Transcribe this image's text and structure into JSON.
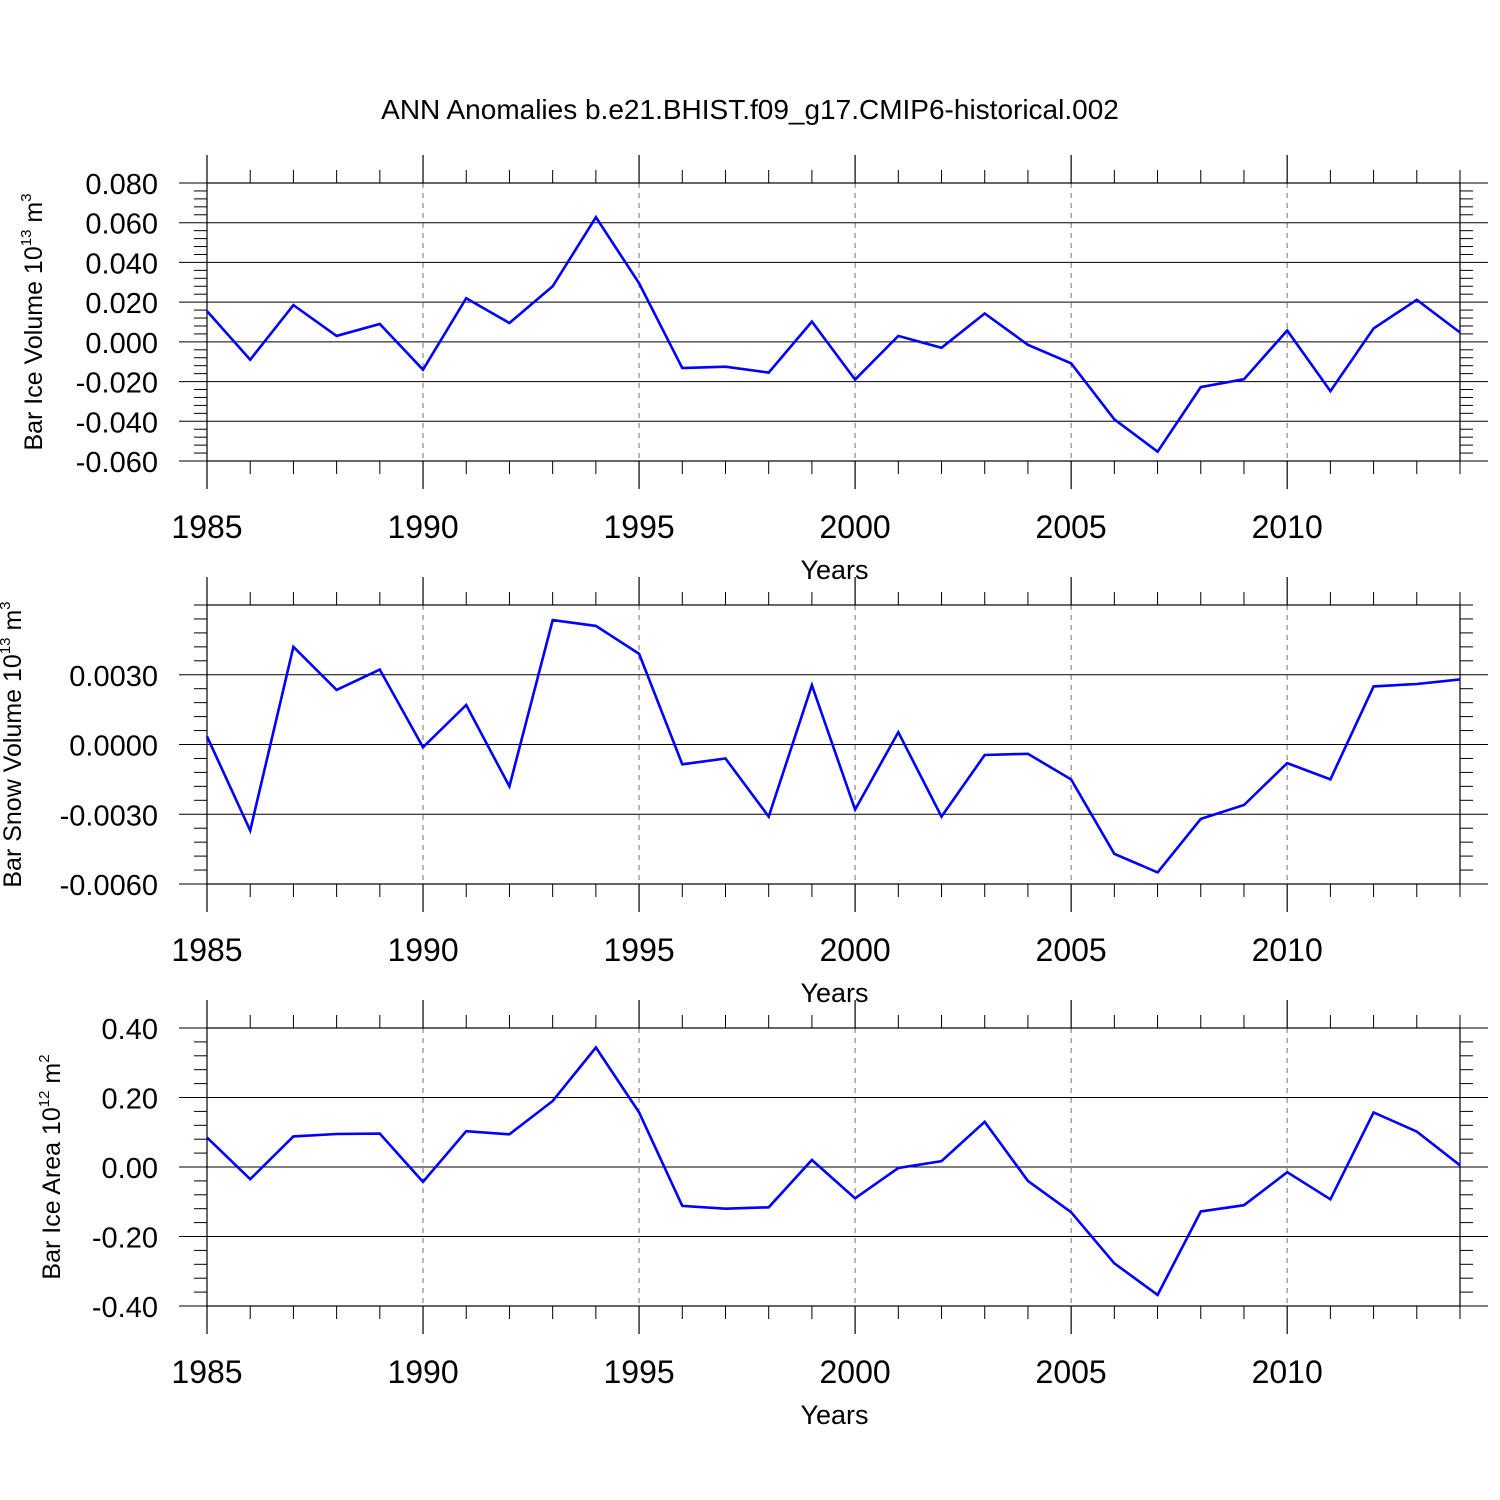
{
  "title": "ANN Anomalies b.e21.BHIST.f09_g17.CMIP6-historical.002",
  "line_color": "#0000ff",
  "chart_data": [
    {
      "type": "line",
      "ylabel": {
        "prefix": "Bar Ice Volume 10",
        "exp": "13",
        "unit": " m",
        "unit_exp": "3"
      },
      "xlabel": "Years",
      "xlim": [
        1985,
        2014
      ],
      "ylim": [
        -0.06,
        0.08
      ],
      "yticks": [
        -0.06,
        -0.04,
        -0.02,
        0.0,
        0.02,
        0.04,
        0.06,
        0.08
      ],
      "ytick_labels": [
        "-0.060",
        "-0.040",
        "-0.020",
        "0.000",
        "0.020",
        "0.040",
        "0.060",
        "0.080"
      ],
      "xticks": [
        1985,
        1990,
        1995,
        2000,
        2005,
        2010
      ],
      "xtick_labels": [
        "1985",
        "1990",
        "1995",
        "2000",
        "2005",
        "2010"
      ],
      "grid": "dashed vertical lines at major x ticks",
      "x": [
        1985,
        1986,
        1987,
        1988,
        1989,
        1990,
        1991,
        1992,
        1993,
        1994,
        1995,
        1996,
        1997,
        1998,
        1999,
        2000,
        2001,
        2002,
        2003,
        2004,
        2005,
        2006,
        2007,
        2008,
        2009,
        2010,
        2011,
        2012,
        2013,
        2014
      ],
      "values": [
        0.0155,
        -0.009,
        0.0185,
        0.003,
        0.009,
        -0.014,
        0.022,
        0.0095,
        0.028,
        0.0628,
        0.0295,
        -0.0132,
        -0.0125,
        -0.0155,
        0.0102,
        -0.019,
        0.003,
        -0.003,
        0.0143,
        -0.0015,
        -0.0108,
        -0.039,
        -0.0553,
        -0.0228,
        -0.0188,
        0.0057,
        -0.0248,
        0.0068,
        0.0212,
        0.0047
      ]
    },
    {
      "type": "line",
      "ylabel": {
        "prefix": "Bar Snow Volume 10",
        "exp": "13",
        "unit": " m",
        "unit_exp": "3"
      },
      "xlabel": "Years",
      "xlim": [
        1985,
        2014
      ],
      "ylim": [
        -0.006,
        0.006
      ],
      "yticks": [
        -0.006,
        -0.003,
        0.0,
        0.003
      ],
      "ytick_labels": [
        "-0.0060",
        "-0.0030",
        "0.0000",
        "0.0030"
      ],
      "xticks": [
        1985,
        1990,
        1995,
        2000,
        2005,
        2010
      ],
      "xtick_labels": [
        "1985",
        "1990",
        "1995",
        "2000",
        "2005",
        "2010"
      ],
      "grid": "dashed vertical lines at major x ticks",
      "x": [
        1985,
        1986,
        1987,
        1988,
        1989,
        1990,
        1991,
        1992,
        1993,
        1994,
        1995,
        1996,
        1997,
        1998,
        1999,
        2000,
        2001,
        2002,
        2003,
        2004,
        2005,
        2006,
        2007,
        2008,
        2009,
        2010,
        2011,
        2012,
        2013,
        2014
      ],
      "values": [
        0.00035,
        -0.0037,
        0.0042,
        0.00235,
        0.00322,
        -0.00012,
        0.0017,
        -0.0018,
        0.00535,
        0.0051,
        0.0039,
        -0.00085,
        -0.0006,
        -0.0031,
        0.00255,
        -0.0028,
        0.00053,
        -0.0031,
        -0.00045,
        -0.0004,
        -0.0015,
        -0.0047,
        -0.0055,
        -0.0032,
        -0.0026,
        -0.0008,
        -0.0015,
        0.0025,
        0.0026,
        0.0028
      ]
    },
    {
      "type": "line",
      "ylabel": {
        "prefix": "Bar Ice Area 10",
        "exp": "12",
        "unit": " m",
        "unit_exp": "2"
      },
      "xlabel": "Years",
      "xlim": [
        1985,
        2014
      ],
      "ylim": [
        -0.4,
        0.4
      ],
      "yticks": [
        -0.4,
        -0.2,
        0.0,
        0.2,
        0.4
      ],
      "ytick_labels": [
        "-0.40",
        "-0.20",
        "0.00",
        "0.20",
        "0.40"
      ],
      "xticks": [
        1985,
        1990,
        1995,
        2000,
        2005,
        2010
      ],
      "xtick_labels": [
        "1985",
        "1990",
        "1995",
        "2000",
        "2005",
        "2010"
      ],
      "grid": "dashed vertical lines at major x ticks",
      "x": [
        1985,
        1986,
        1987,
        1988,
        1989,
        1990,
        1991,
        1992,
        1993,
        1994,
        1995,
        1996,
        1997,
        1998,
        1999,
        2000,
        2001,
        2002,
        2003,
        2004,
        2005,
        2006,
        2007,
        2008,
        2009,
        2010,
        2011,
        2012,
        2013,
        2014
      ],
      "values": [
        0.085,
        -0.035,
        0.088,
        0.095,
        0.096,
        -0.043,
        0.103,
        0.094,
        0.19,
        0.344,
        0.157,
        -0.112,
        -0.12,
        -0.116,
        0.02,
        -0.09,
        -0.003,
        0.017,
        0.13,
        -0.04,
        -0.13,
        -0.277,
        -0.368,
        -0.128,
        -0.11,
        -0.015,
        -0.093,
        0.157,
        0.102,
        0.005
      ]
    }
  ]
}
